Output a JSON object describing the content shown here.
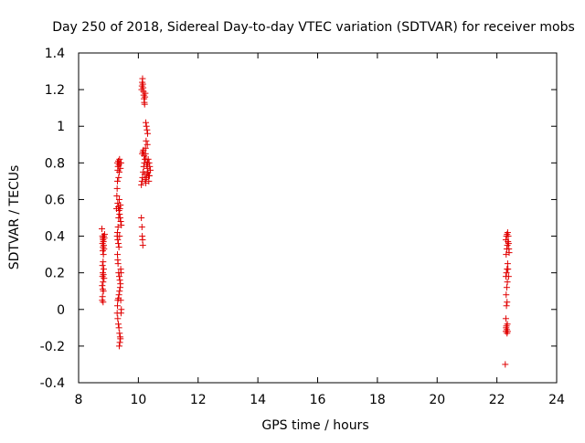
{
  "chart_data": {
    "type": "scatter",
    "title": "Day 250 of 2018, Sidereal Day-to-day VTEC variation (SDTVAR) for receiver mobs",
    "xlabel": "GPS time / hours",
    "ylabel": "SDTVAR / TECUs",
    "xlim": [
      8,
      24
    ],
    "ylim": [
      -0.4,
      1.4
    ],
    "xticks": [
      8,
      10,
      12,
      14,
      16,
      18,
      20,
      22,
      24
    ],
    "xtick_labels": [
      "8",
      "10",
      "12",
      "14",
      "16",
      "18",
      "20",
      "22",
      "24"
    ],
    "yticks": [
      -0.4,
      -0.2,
      0,
      0.2,
      0.4,
      0.6,
      0.8,
      1,
      1.2,
      1.4
    ],
    "ytick_labels": [
      "-0.4",
      "-0.2",
      "0",
      "0.2",
      "0.4",
      "0.6",
      "0.8",
      "1",
      "1.2",
      "1.4"
    ],
    "grid": false,
    "marker": "+",
    "color": "#e00000",
    "series": [
      {
        "name": "SDTVAR",
        "points": [
          [
            8.78,
            0.44
          ],
          [
            8.8,
            0.4
          ],
          [
            8.81,
            0.39
          ],
          [
            8.82,
            0.38
          ],
          [
            8.83,
            0.37
          ],
          [
            8.8,
            0.36
          ],
          [
            8.84,
            0.35
          ],
          [
            8.82,
            0.34
          ],
          [
            8.85,
            0.33
          ],
          [
            8.81,
            0.32
          ],
          [
            8.83,
            0.3
          ],
          [
            8.82,
            0.26
          ],
          [
            8.8,
            0.24
          ],
          [
            8.84,
            0.22
          ],
          [
            8.81,
            0.2
          ],
          [
            8.83,
            0.19
          ],
          [
            8.8,
            0.18
          ],
          [
            8.85,
            0.17
          ],
          [
            8.82,
            0.15
          ],
          [
            8.79,
            0.13
          ],
          [
            8.81,
            0.11
          ],
          [
            8.83,
            0.1
          ],
          [
            8.8,
            0.07
          ],
          [
            8.79,
            0.05
          ],
          [
            8.82,
            0.04
          ],
          [
            8.86,
            0.39
          ],
          [
            8.87,
            0.41
          ],
          [
            8.84,
            0.4
          ],
          [
            9.27,
            0.55
          ],
          [
            9.28,
            0.62
          ],
          [
            9.29,
            0.66
          ],
          [
            9.3,
            0.7
          ],
          [
            9.31,
            0.76
          ],
          [
            9.32,
            0.78
          ],
          [
            9.3,
            0.8
          ],
          [
            9.33,
            0.81
          ],
          [
            9.35,
            0.79
          ],
          [
            9.37,
            0.82
          ],
          [
            9.38,
            0.8
          ],
          [
            9.4,
            0.77
          ],
          [
            9.42,
            0.8
          ],
          [
            9.36,
            0.75
          ],
          [
            9.34,
            0.72
          ],
          [
            9.31,
            0.58
          ],
          [
            9.33,
            0.56
          ],
          [
            9.35,
            0.54
          ],
          [
            9.37,
            0.52
          ],
          [
            9.39,
            0.5
          ],
          [
            9.41,
            0.48
          ],
          [
            9.43,
            0.46
          ],
          [
            9.38,
            0.55
          ],
          [
            9.4,
            0.57
          ],
          [
            9.36,
            0.6
          ],
          [
            9.34,
            0.5
          ],
          [
            9.32,
            0.45
          ],
          [
            9.3,
            0.42
          ],
          [
            9.29,
            0.4
          ],
          [
            9.31,
            0.38
          ],
          [
            9.33,
            0.36
          ],
          [
            9.35,
            0.34
          ],
          [
            9.37,
            0.4
          ],
          [
            9.3,
            0.3
          ],
          [
            9.31,
            0.27
          ],
          [
            9.32,
            0.25
          ],
          [
            9.34,
            0.2
          ],
          [
            9.36,
            0.18
          ],
          [
            9.38,
            0.16
          ],
          [
            9.4,
            0.14
          ],
          [
            9.42,
            0.2
          ],
          [
            9.41,
            0.22
          ],
          [
            9.39,
            0.12
          ],
          [
            9.37,
            0.1
          ],
          [
            9.35,
            0.08
          ],
          [
            9.33,
            0.06
          ],
          [
            9.31,
            0.05
          ],
          [
            9.3,
            0.02
          ],
          [
            9.29,
            -0.02
          ],
          [
            9.31,
            -0.05
          ],
          [
            9.33,
            -0.08
          ],
          [
            9.35,
            -0.1
          ],
          [
            9.37,
            -0.13
          ],
          [
            9.39,
            -0.15
          ],
          [
            9.4,
            -0.16
          ],
          [
            9.38,
            -0.18
          ],
          [
            9.36,
            -0.2
          ],
          [
            9.42,
            -0.02
          ],
          [
            9.43,
            0.0
          ],
          [
            9.41,
            0.05
          ],
          [
            10.1,
            0.5
          ],
          [
            10.12,
            0.45
          ],
          [
            10.13,
            0.4
          ],
          [
            10.14,
            0.38
          ],
          [
            10.15,
            0.35
          ],
          [
            10.1,
            0.68
          ],
          [
            10.12,
            0.7
          ],
          [
            10.14,
            0.72
          ],
          [
            10.16,
            0.75
          ],
          [
            10.18,
            0.78
          ],
          [
            10.2,
            0.8
          ],
          [
            10.22,
            0.82
          ],
          [
            10.24,
            0.85
          ],
          [
            10.26,
            0.82
          ],
          [
            10.28,
            0.79
          ],
          [
            10.3,
            0.77
          ],
          [
            10.32,
            0.75
          ],
          [
            10.34,
            0.73
          ],
          [
            10.36,
            0.8
          ],
          [
            10.38,
            0.78
          ],
          [
            10.4,
            0.76
          ],
          [
            10.13,
            0.85
          ],
          [
            10.15,
            0.86
          ],
          [
            10.17,
            0.87
          ],
          [
            10.19,
            0.84
          ],
          [
            10.21,
            0.74
          ],
          [
            10.23,
            0.71
          ],
          [
            10.25,
            0.69
          ],
          [
            10.27,
            0.72
          ],
          [
            10.29,
            0.74
          ],
          [
            10.31,
            0.8
          ],
          [
            10.33,
            0.82
          ],
          [
            10.35,
            0.7
          ],
          [
            10.37,
            0.73
          ],
          [
            10.11,
            1.2
          ],
          [
            10.12,
            1.22
          ],
          [
            10.13,
            1.24
          ],
          [
            10.14,
            1.26
          ],
          [
            10.15,
            1.23
          ],
          [
            10.16,
            1.21
          ],
          [
            10.17,
            1.19
          ],
          [
            10.18,
            1.17
          ],
          [
            10.19,
            1.15
          ],
          [
            10.2,
            1.13
          ],
          [
            10.21,
            1.12
          ],
          [
            10.22,
            1.16
          ],
          [
            10.23,
            1.18
          ],
          [
            10.25,
            1.02
          ],
          [
            10.27,
            1.0
          ],
          [
            10.29,
            0.98
          ],
          [
            10.31,
            0.96
          ],
          [
            10.26,
            0.92
          ],
          [
            10.3,
            0.9
          ],
          [
            10.24,
            0.88
          ],
          [
            22.28,
            -0.3
          ],
          [
            22.3,
            -0.12
          ],
          [
            22.31,
            -0.1
          ],
          [
            22.32,
            -0.09
          ],
          [
            22.33,
            -0.11
          ],
          [
            22.34,
            -0.13
          ],
          [
            22.35,
            -0.08
          ],
          [
            22.36,
            -0.12
          ],
          [
            22.3,
            -0.05
          ],
          [
            22.32,
            0.02
          ],
          [
            22.34,
            0.04
          ],
          [
            22.31,
            0.08
          ],
          [
            22.33,
            0.12
          ],
          [
            22.35,
            0.15
          ],
          [
            22.3,
            0.18
          ],
          [
            22.32,
            0.2
          ],
          [
            22.34,
            0.22
          ],
          [
            22.36,
            0.25
          ],
          [
            22.31,
            0.3
          ],
          [
            22.33,
            0.33
          ],
          [
            22.35,
            0.35
          ],
          [
            22.37,
            0.37
          ],
          [
            22.3,
            0.38
          ],
          [
            22.32,
            0.4
          ],
          [
            22.34,
            0.41
          ],
          [
            22.36,
            0.42
          ],
          [
            22.38,
            0.4
          ],
          [
            22.39,
            0.36
          ],
          [
            22.4,
            0.33
          ],
          [
            22.41,
            0.31
          ],
          [
            22.37,
            0.22
          ],
          [
            22.39,
            0.18
          ]
        ]
      }
    ]
  }
}
